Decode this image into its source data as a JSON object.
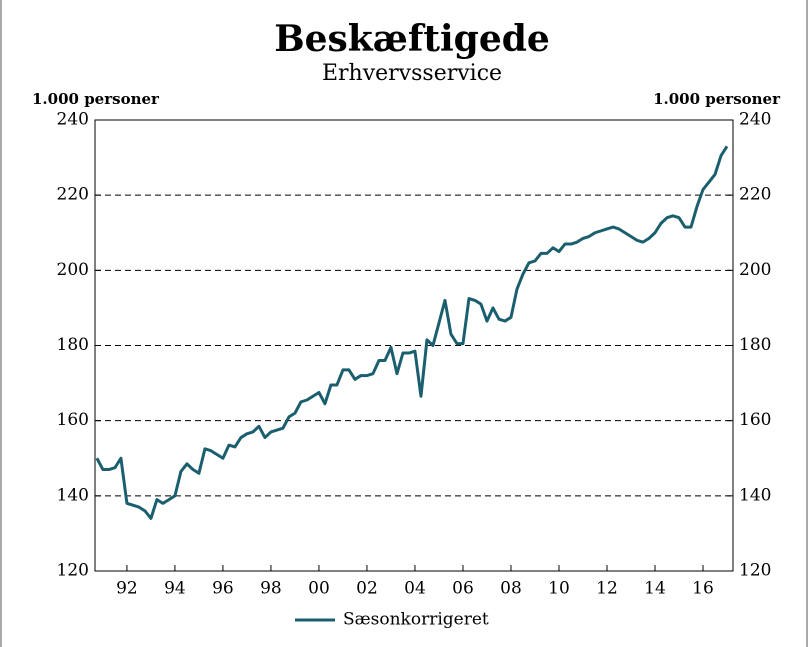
{
  "chart_data": {
    "type": "line",
    "title": "Beskæftigede",
    "subtitle": "Erhvervsservice",
    "ylabel": "1.000 personer",
    "y2label": "1.000 personer",
    "x": [
      1990.75,
      1991,
      1991.25,
      1991.5,
      1991.75,
      1992,
      1992.25,
      1992.5,
      1992.75,
      1993,
      1993.25,
      1993.5,
      1993.75,
      1994,
      1994.25,
      1994.5,
      1994.75,
      1995,
      1995.25,
      1995.5,
      1995.75,
      1996,
      1996.25,
      1996.5,
      1996.75,
      1997,
      1997.25,
      1997.5,
      1997.75,
      1998,
      1998.25,
      1998.5,
      1998.75,
      1999,
      1999.25,
      1999.5,
      1999.75,
      2000,
      2000.25,
      2000.5,
      2000.75,
      2001,
      2001.25,
      2001.5,
      2001.75,
      2002,
      2002.25,
      2002.5,
      2002.75,
      2003,
      2003.25,
      2003.5,
      2003.75,
      2004,
      2004.25,
      2004.5,
      2004.75,
      2005,
      2005.25,
      2005.5,
      2005.75,
      2006,
      2006.25,
      2006.5,
      2006.75,
      2007,
      2007.25,
      2007.5,
      2007.75,
      2008,
      2008.25,
      2008.5,
      2008.75,
      2009,
      2009.25,
      2009.5,
      2009.75,
      2010,
      2010.25,
      2010.5,
      2010.75,
      2011,
      2011.25,
      2011.5,
      2011.75,
      2012,
      2012.25,
      2012.5,
      2012.75,
      2013,
      2013.25,
      2013.5,
      2013.75,
      2014,
      2014.25,
      2014.5,
      2014.75,
      2015,
      2015.25,
      2015.5,
      2015.75,
      2016,
      2016.25,
      2016.5,
      2016.75,
      2017
    ],
    "series": [
      {
        "name": "Sæsonkorrigeret",
        "color": "#1b5f6f",
        "values": [
          150,
          147,
          147,
          147.5,
          150,
          138,
          137.5,
          137,
          136,
          134,
          139,
          138,
          139,
          140,
          146.5,
          148.5,
          147,
          146,
          152.5,
          152,
          151,
          150,
          153.5,
          153,
          155.5,
          156.5,
          157,
          158.5,
          155.5,
          157,
          157.5,
          158,
          161,
          162,
          165,
          165.5,
          166.5,
          167.5,
          164.5,
          169.5,
          169.5,
          173.5,
          173.5,
          171,
          172,
          172,
          172.5,
          176,
          176,
          179.5,
          172.5,
          178,
          178,
          178.5,
          166.5,
          181.5,
          180,
          186,
          192,
          183,
          180.5,
          180.5,
          192.5,
          192,
          191,
          186.5,
          190,
          187,
          186.5,
          187.5,
          195,
          199,
          202,
          202.5,
          204.5,
          204.5,
          206,
          205,
          207,
          207,
          207.5,
          208.5,
          209,
          210,
          210.5,
          211,
          211.5,
          211,
          210,
          209,
          208,
          207.5,
          208.5,
          210,
          212.5,
          214,
          214.5,
          214,
          211.5,
          211.5,
          217,
          221.5,
          223.5,
          225.5,
          230.5,
          233
        ]
      }
    ],
    "xlim": [
      1990.67,
      2017.25
    ],
    "xticks": [
      {
        "value": 1992,
        "label": "92"
      },
      {
        "value": 1994,
        "label": "94"
      },
      {
        "value": 1996,
        "label": "96"
      },
      {
        "value": 1998,
        "label": "98"
      },
      {
        "value": 2000,
        "label": "00"
      },
      {
        "value": 2002,
        "label": "02"
      },
      {
        "value": 2004,
        "label": "04"
      },
      {
        "value": 2006,
        "label": "06"
      },
      {
        "value": 2008,
        "label": "08"
      },
      {
        "value": 2010,
        "label": "10"
      },
      {
        "value": 2012,
        "label": "12"
      },
      {
        "value": 2014,
        "label": "14"
      },
      {
        "value": 2016,
        "label": "16"
      }
    ],
    "ylim": [
      120,
      240
    ],
    "yticks": [
      120,
      140,
      160,
      180,
      200,
      220,
      240
    ],
    "grid": true,
    "legend": "bottom"
  }
}
